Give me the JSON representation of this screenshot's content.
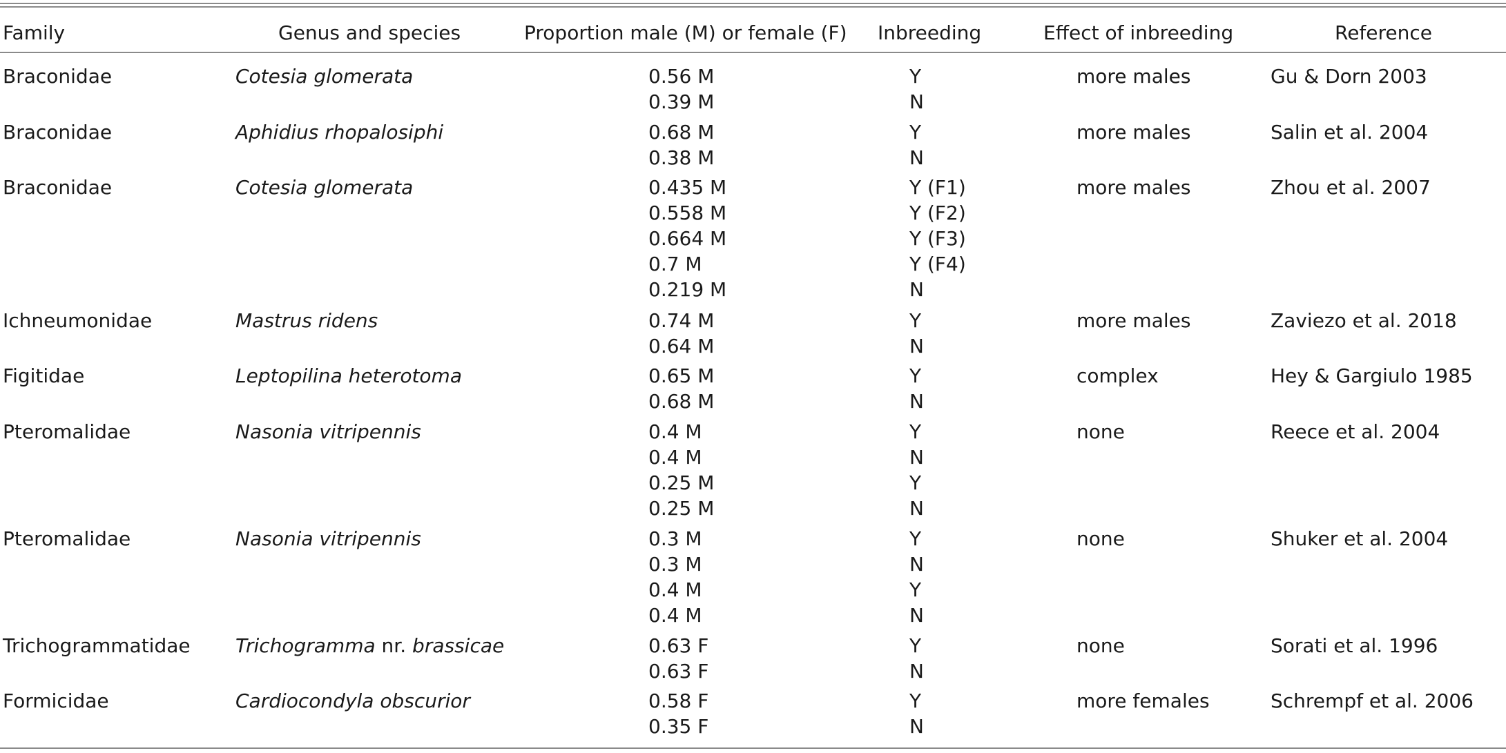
{
  "table": {
    "headers": {
      "family": "Family",
      "genus": "Genus and species",
      "proportion": "Proportion male (M) or female (F)",
      "inbreeding": "Inbreeding",
      "effect": "Effect of inbreeding",
      "reference": "Reference"
    },
    "rows": [
      {
        "family": "Braconidae",
        "genus": "Cotesia glomerata",
        "proportions": [
          "0.56 M",
          "0.39 M"
        ],
        "inbreeding": [
          "Y",
          "N"
        ],
        "effect": "more males",
        "reference": "Gu & Dorn 2003"
      },
      {
        "family": "Braconidae",
        "genus": "Aphidius rhopalosiphi",
        "proportions": [
          "0.68 M",
          "0.38 M"
        ],
        "inbreeding": [
          "Y",
          "N"
        ],
        "effect": "more males",
        "reference": "Salin et al. 2004"
      },
      {
        "family": "Braconidae",
        "genus": "Cotesia glomerata",
        "proportions": [
          "0.435 M",
          "0.558 M",
          "0.664 M",
          "0.7 M",
          "0.219 M"
        ],
        "inbreeding": [
          "Y (F1)",
          "Y (F2)",
          "Y (F3)",
          "Y (F4)",
          "N"
        ],
        "effect": "more males",
        "reference": "Zhou et al. 2007"
      },
      {
        "family": "Ichneumonidae",
        "genus": "Mastrus ridens",
        "proportions": [
          "0.74 M",
          "0.64 M"
        ],
        "inbreeding": [
          "Y",
          "N"
        ],
        "effect": "more males",
        "reference": "Zaviezo et al. 2018"
      },
      {
        "family": "Figitidae",
        "genus": "Leptopilina heterotoma",
        "proportions": [
          "0.65 M",
          "0.68 M"
        ],
        "inbreeding": [
          "Y",
          "N"
        ],
        "effect": "complex",
        "reference": "Hey & Gargiulo 1985"
      },
      {
        "family": "Pteromalidae",
        "genus": "Nasonia vitripennis",
        "proportions": [
          "0.4 M",
          "0.4 M",
          "0.25 M",
          "0.25 M"
        ],
        "inbreeding": [
          "Y",
          "N",
          "Y",
          "N"
        ],
        "effect": "none",
        "reference": "Reece et al. 2004"
      },
      {
        "family": "Pteromalidae",
        "genus": "Nasonia vitripennis",
        "proportions": [
          "0.3 M",
          "0.3 M",
          "0.4 M",
          "0.4 M"
        ],
        "inbreeding": [
          "Y",
          "N",
          "Y",
          "N"
        ],
        "effect": "none",
        "reference": "Shuker et al. 2004"
      },
      {
        "family": "Trichogrammatidae",
        "genus_italic_1": "Trichogramma",
        "genus_roman": " nr. ",
        "genus_italic_2": "brassicae",
        "proportions": [
          "0.63 F",
          "0.63 F"
        ],
        "inbreeding": [
          "Y",
          "N"
        ],
        "effect": "none",
        "reference": "Sorati et al. 1996"
      },
      {
        "family": "Formicidae",
        "genus": "Cardiocondyla obscurior",
        "proportions": [
          "0.58 F",
          "0.35 F"
        ],
        "inbreeding": [
          "Y",
          "N"
        ],
        "effect": "more females",
        "reference": "Schrempf et al. 2006"
      }
    ]
  }
}
